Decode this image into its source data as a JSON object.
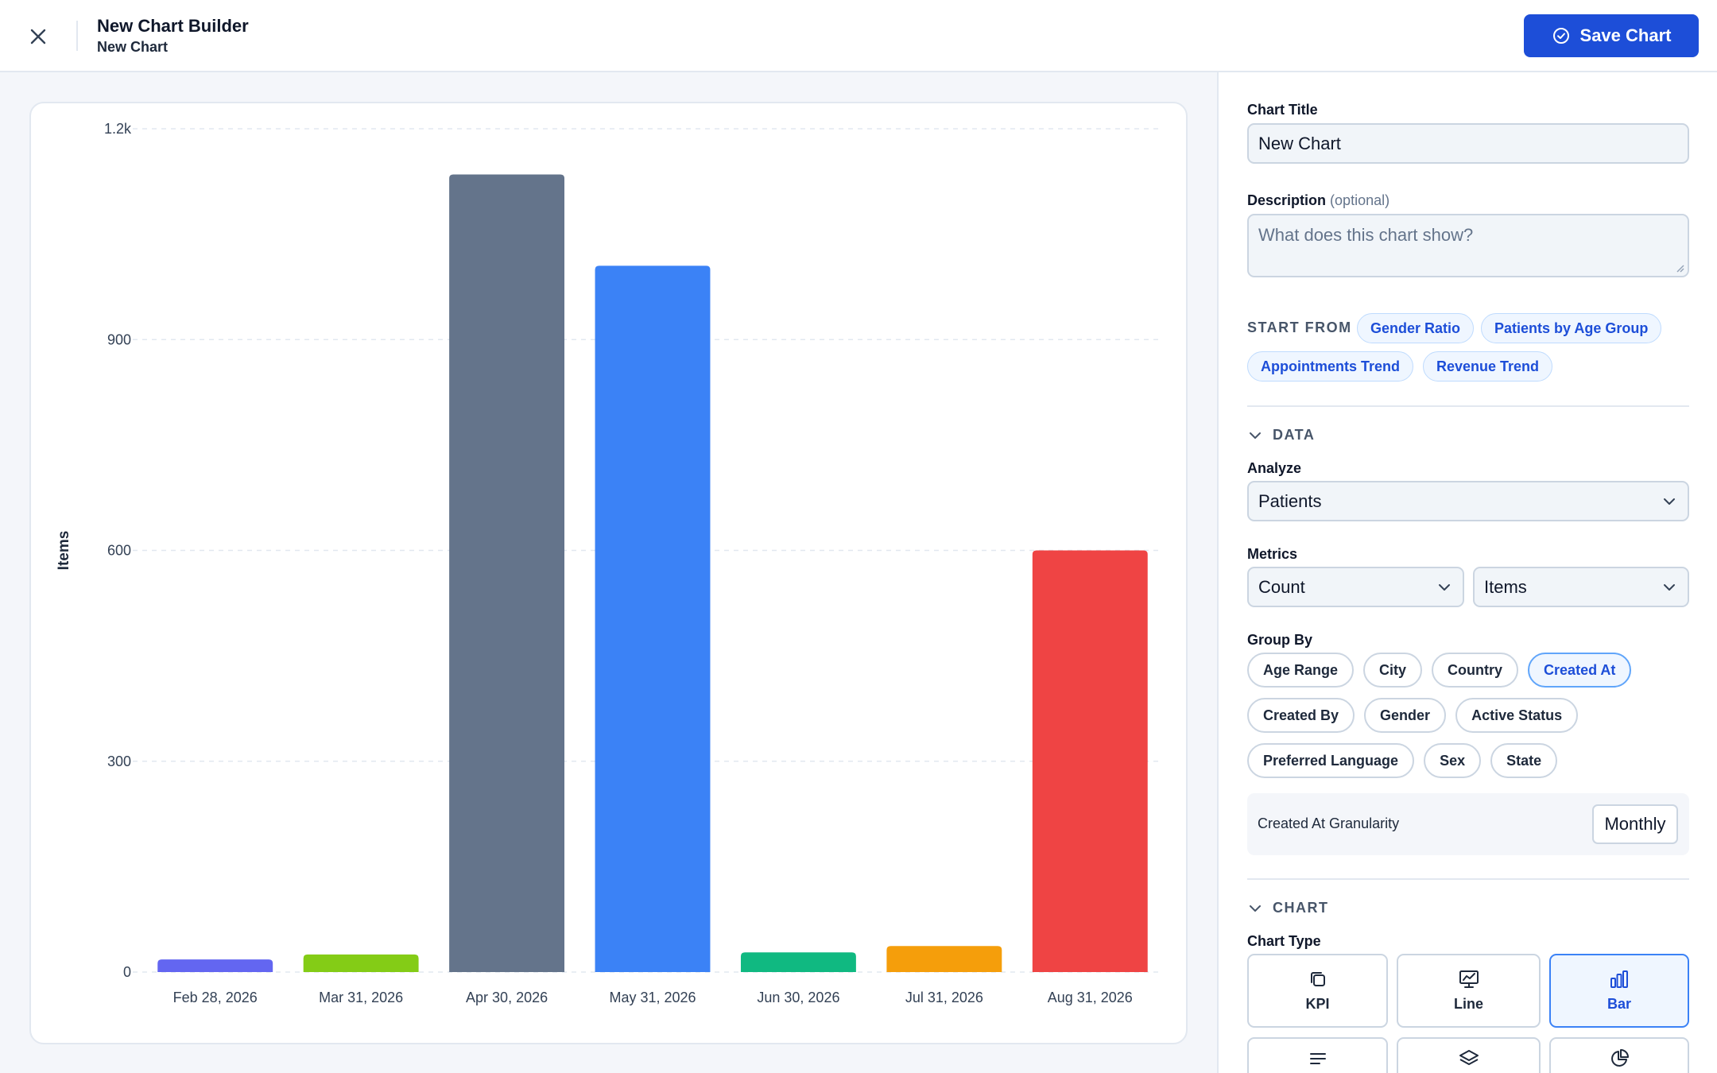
{
  "header": {
    "title": "New Chart Builder",
    "subtitle": "New Chart",
    "save_label": "Save Chart"
  },
  "chart_data": {
    "type": "bar",
    "ylabel": "Items",
    "xlabel": "",
    "ylim": [
      0,
      1200
    ],
    "yticks": [
      0,
      300,
      600,
      900,
      1200
    ],
    "ytick_labels": [
      "0",
      "300",
      "600",
      "900",
      "1.2k"
    ],
    "categories": [
      "Feb 28, 2026",
      "Mar 31, 2026",
      "Apr 30, 2026",
      "May 31, 2026",
      "Jun 30, 2026",
      "Jul 31, 2026",
      "Aug 31, 2026"
    ],
    "values": [
      18,
      25,
      1135,
      1005,
      28,
      37,
      600
    ],
    "colors": [
      "#6366f1",
      "#84cc16",
      "#64748b",
      "#3b82f6",
      "#10b981",
      "#f59e0b",
      "#ef4444"
    ],
    "grid": "horizontal-dashed",
    "legend": "none"
  },
  "panel": {
    "chart_title_label": "Chart Title",
    "chart_title_value": "New Chart",
    "description_label": "Description",
    "description_optional": "(optional)",
    "description_placeholder": "What does this chart show?",
    "start_from_label": "START FROM",
    "templates": [
      "Gender Ratio",
      "Patients by Age Group",
      "Appointments Trend",
      "Revenue Trend"
    ],
    "data_section_label": "DATA",
    "analyze_label": "Analyze",
    "analyze_value": "Patients",
    "metrics_label": "Metrics",
    "metric_agg": "Count",
    "metric_field": "Items",
    "group_by_label": "Group By",
    "group_by_options": [
      "Age Range",
      "City",
      "Country",
      "Created At",
      "Created By",
      "Gender",
      "Active Status",
      "Preferred Language",
      "Sex",
      "State"
    ],
    "group_by_selected": "Created At",
    "granularity_label": "Created At Granularity",
    "granularity_value": "Monthly",
    "chart_section_label": "CHART",
    "chart_type_label": "Chart Type",
    "chart_types": [
      "KPI",
      "Line",
      "Bar"
    ],
    "chart_type_selected": "Bar"
  },
  "colors": {
    "accent": "#1d4ed8",
    "chip_active_bg": "#eff6ff",
    "border": "#cbd5e1"
  }
}
